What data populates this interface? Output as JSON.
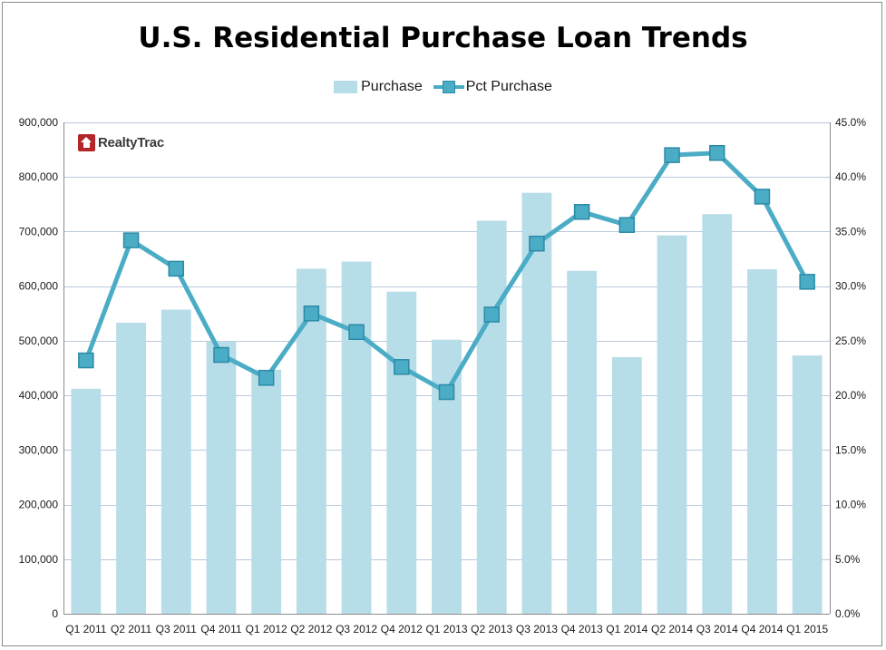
{
  "title": "U.S. Residential Purchase Loan Trends",
  "logo": {
    "text": "RealtyTrac",
    "icon": "house-icon"
  },
  "legend": [
    {
      "name": "Purchase",
      "kind": "bar",
      "color": "#b7dde8"
    },
    {
      "name": "Pct Purchase",
      "kind": "line",
      "color": "#4bacc6"
    }
  ],
  "chart_data": {
    "type": "bar",
    "title": "U.S. Residential Purchase Loan Trends",
    "categories": [
      "Q1 2011",
      "Q2 2011",
      "Q3 2011",
      "Q4 2011",
      "Q1 2012",
      "Q2 2012",
      "Q3 2012",
      "Q4 2012",
      "Q1 2013",
      "Q2 2013",
      "Q3 2013",
      "Q4 2013",
      "Q1 2014",
      "Q2 2014",
      "Q3 2014",
      "Q4 2014",
      "Q1 2015"
    ],
    "series": [
      {
        "name": "Purchase",
        "type": "bar",
        "axis": "left",
        "color": "#b7dde8",
        "values": [
          412000,
          533000,
          557000,
          499000,
          447000,
          632000,
          645000,
          590000,
          502000,
          720000,
          771000,
          628000,
          470000,
          693000,
          732000,
          631000,
          473000
        ]
      },
      {
        "name": "Pct Purchase",
        "type": "line",
        "axis": "right",
        "color": "#4bacc6",
        "marker_color": "#4bacc6",
        "values": [
          23.2,
          34.2,
          31.6,
          23.7,
          21.6,
          27.5,
          25.8,
          22.6,
          20.3,
          27.4,
          33.9,
          36.8,
          35.6,
          42.0,
          42.2,
          38.2,
          30.4
        ]
      }
    ],
    "y_left": {
      "min": 0,
      "max": 900000,
      "step": 100000,
      "tick_labels": [
        "0",
        "100,000",
        "200,000",
        "300,000",
        "400,000",
        "500,000",
        "600,000",
        "700,000",
        "800,000",
        "900,000"
      ]
    },
    "y_right": {
      "min": 0,
      "max": 45,
      "step": 5,
      "tick_labels": [
        "0.0%",
        "5.0%",
        "10.0%",
        "15.0%",
        "20.0%",
        "25.0%",
        "30.0%",
        "35.0%",
        "40.0%",
        "45.0%"
      ]
    },
    "grid": true,
    "legend_position": "top"
  }
}
